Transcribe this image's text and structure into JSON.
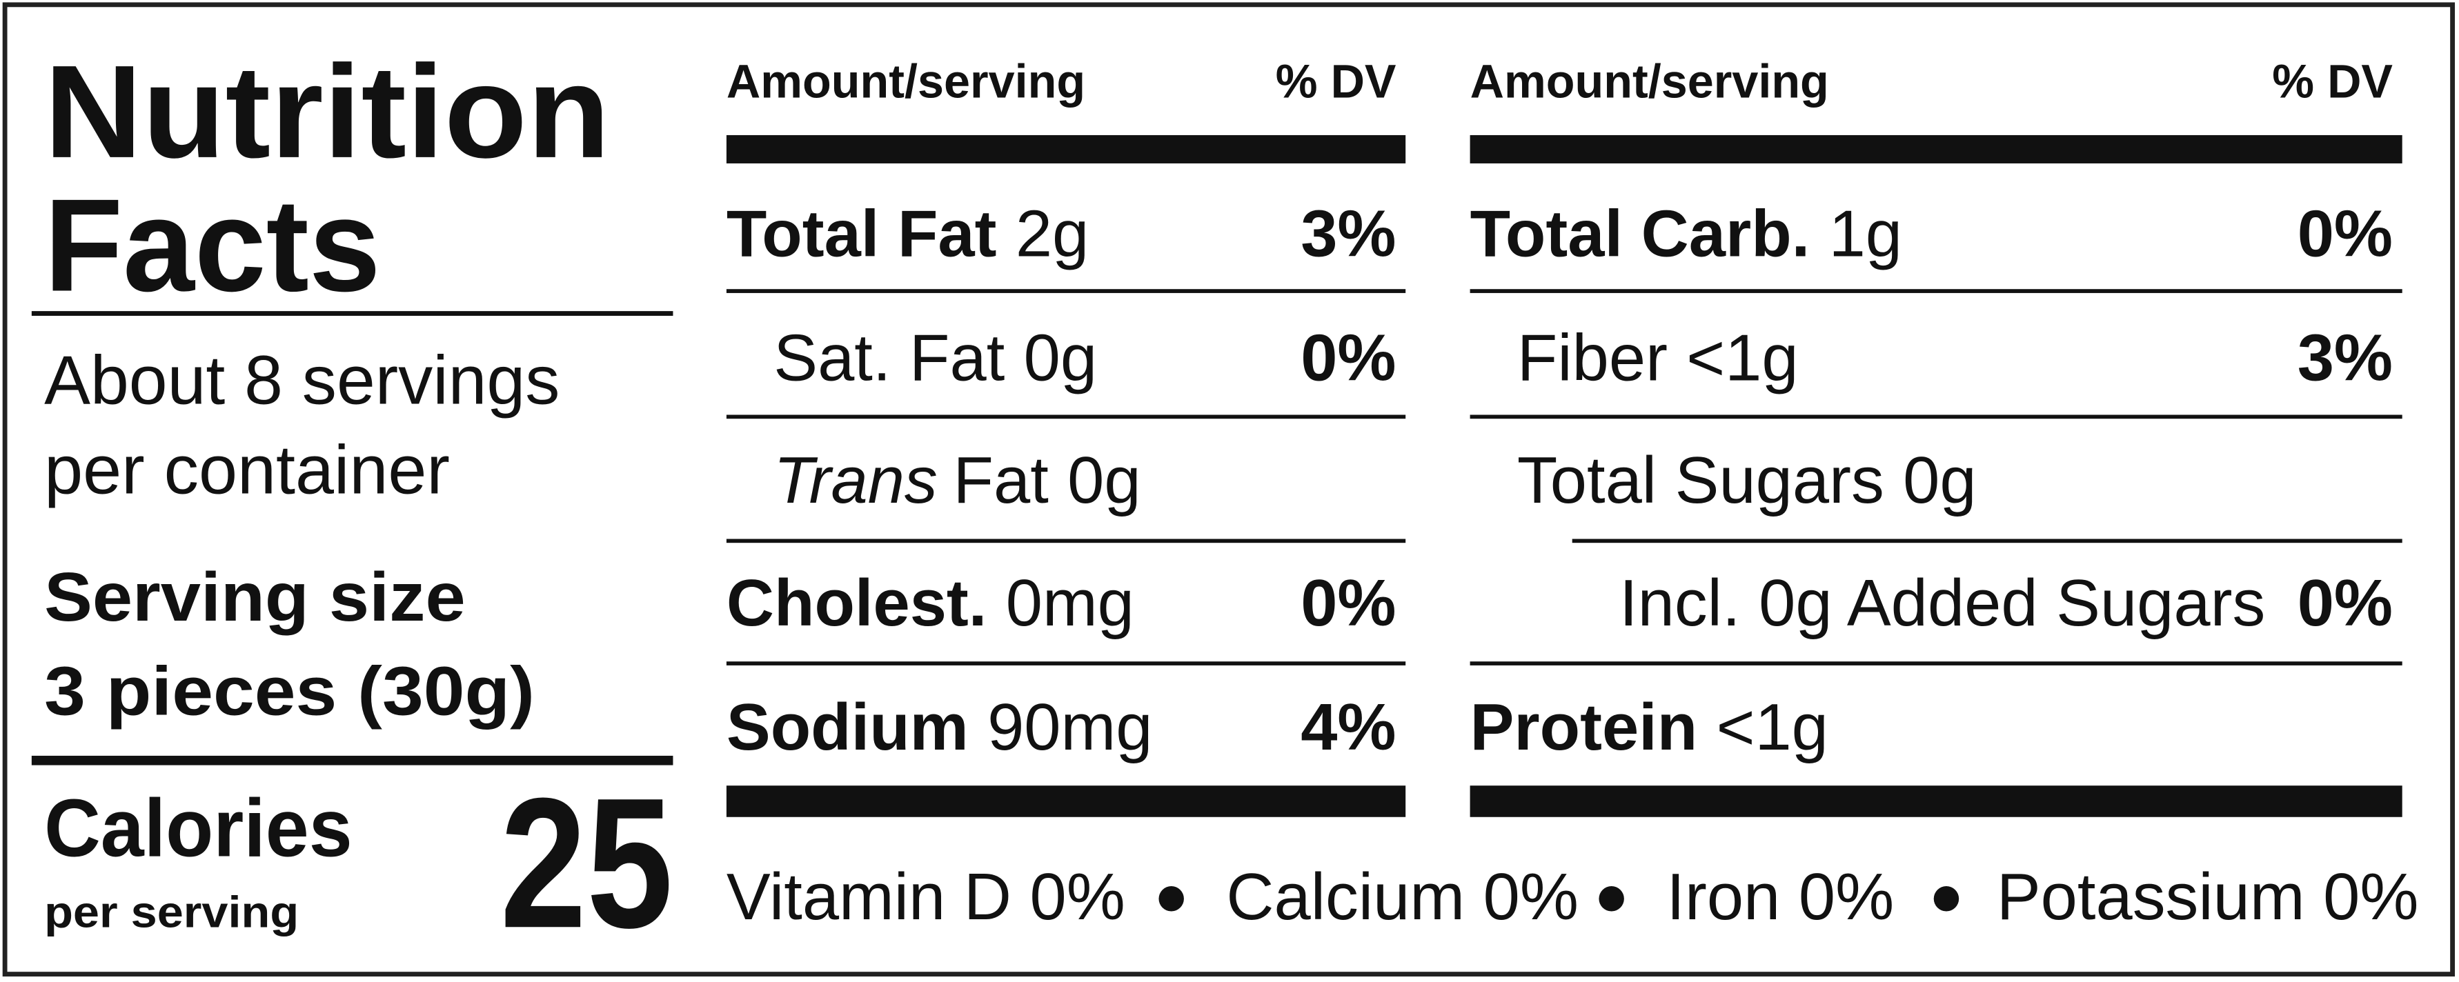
{
  "title": [
    "Nutrition",
    "Facts"
  ],
  "servings": [
    "About 8 servings",
    "per container"
  ],
  "serving_size": {
    "label": "Serving size",
    "value": "3 pieces (30g)"
  },
  "calories": {
    "label": "Calories",
    "sublabel": "per serving",
    "value": 25
  },
  "columns": [
    {
      "header": {
        "amount": "Amount/serving",
        "dv": "% DV"
      },
      "rows": [
        {
          "name": "Total Fat",
          "amount": "2g",
          "dv": "3%",
          "bold": true,
          "indent": 0
        },
        {
          "name": "Sat. Fat",
          "amount": "0g",
          "dv": "0%",
          "bold": false,
          "indent": 1
        },
        {
          "italic": "Trans",
          "name": "Fat",
          "amount": "0g",
          "bold": false,
          "indent": 1
        },
        {
          "name": "Cholest.",
          "amount": "0mg",
          "dv": "0%",
          "bold": true,
          "indent": 0
        },
        {
          "name": "Sodium",
          "amount": "90mg",
          "dv": "4%",
          "bold": true,
          "indent": 0
        }
      ]
    },
    {
      "header": {
        "amount": "Amount/serving",
        "dv": "% DV"
      },
      "rows": [
        {
          "name": "Total Carb.",
          "amount": "1g",
          "dv": "0%",
          "bold": true,
          "indent": 0
        },
        {
          "name": "Fiber",
          "amount": "<1g",
          "dv": "3%",
          "bold": false,
          "indent": 1
        },
        {
          "name": "Total Sugars",
          "amount": "0g",
          "bold": false,
          "indent": 1
        },
        {
          "name": "Incl. 0g Added Sugars",
          "dv": "0%",
          "bold": false,
          "indent": 2
        },
        {
          "name": "Protein",
          "amount": "<1g",
          "bold": true,
          "indent": 0
        }
      ]
    }
  ],
  "vitamins": [
    "Vitamin D 0%",
    "Calcium 0%",
    "Iron 0%",
    "Potassium 0%"
  ]
}
